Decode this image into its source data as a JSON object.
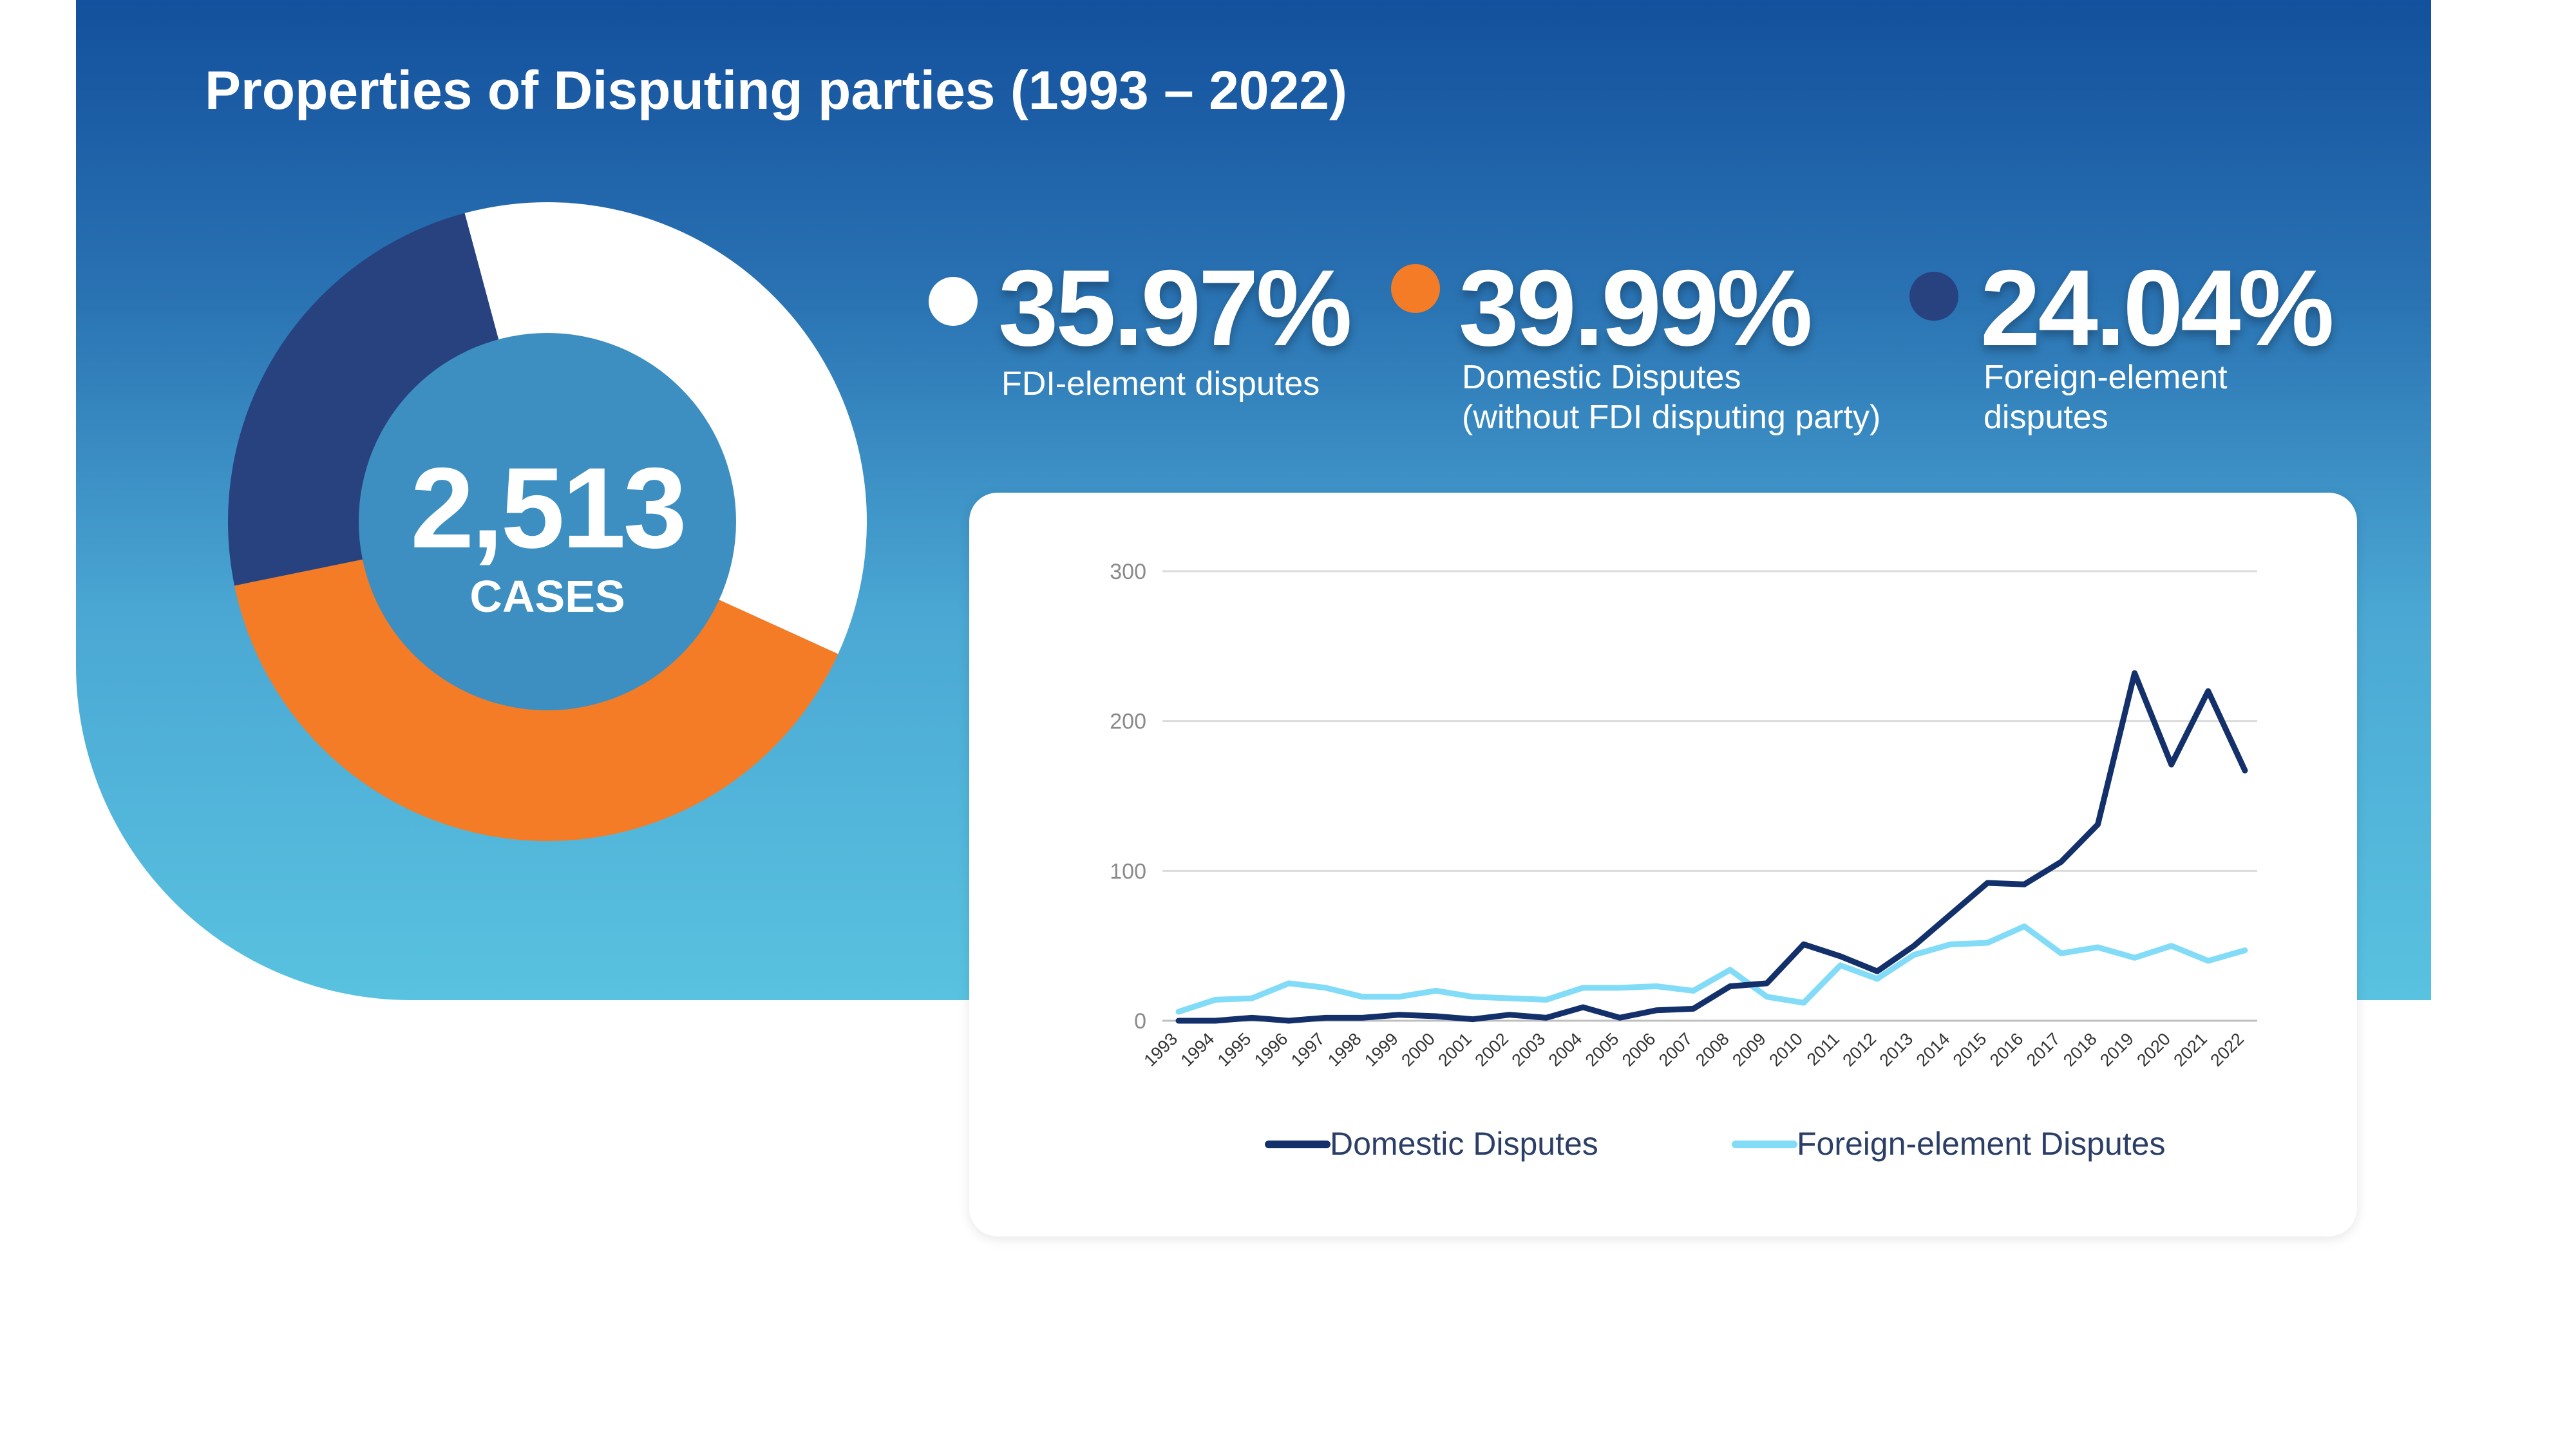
{
  "title": "Properties of Disputing parties (1993 – 2022)",
  "colors": {
    "fdi": "#ffffff",
    "domestic": "#f47c26",
    "foreign": "#27427f",
    "domestic_line": "#13306b",
    "foreign_line": "#82dcf7",
    "donut_center": "#3c8fc0"
  },
  "total": {
    "value": "2,513",
    "label": "CASES"
  },
  "stats": [
    {
      "value": "35.97%",
      "label_lines": [
        "FDI-element disputes"
      ]
    },
    {
      "value": "39.99%",
      "label_lines": [
        "Domestic Disputes",
        "(without FDI disputing party)"
      ]
    },
    {
      "value": "24.04%",
      "label_lines": [
        "Foreign-element",
        "disputes"
      ]
    }
  ],
  "chart_data": [
    {
      "type": "pie",
      "variant": "donut",
      "labels": [
        "FDI-element disputes",
        "Domestic Disputes (without FDI disputing party)",
        "Foreign-element disputes"
      ],
      "values": [
        35.97,
        39.99,
        24.04
      ],
      "unit": "%",
      "total_cases": 2513
    },
    {
      "type": "line",
      "x": [
        "1993",
        "1994",
        "1995",
        "1996",
        "1997",
        "1998",
        "1999",
        "2000",
        "2001",
        "2002",
        "2003",
        "2004",
        "2005",
        "2006",
        "2007",
        "2008",
        "2009",
        "2010",
        "2011",
        "2012",
        "2013",
        "2014",
        "2015",
        "2016",
        "2017",
        "2018",
        "2019",
        "2020",
        "2021",
        "2022"
      ],
      "series": [
        {
          "name": "Domestic Disputes",
          "values": [
            0,
            0,
            2,
            0,
            2,
            2,
            4,
            3,
            1,
            4,
            2,
            9,
            2,
            7,
            8,
            23,
            25,
            51,
            43,
            33,
            50,
            71,
            92,
            91,
            106,
            131,
            232,
            171,
            220,
            167
          ]
        },
        {
          "name": "Foreign-element Disputes",
          "values": [
            6,
            14,
            15,
            25,
            22,
            16,
            16,
            20,
            16,
            15,
            14,
            22,
            22,
            23,
            20,
            34,
            16,
            12,
            37,
            28,
            44,
            51,
            52,
            63,
            45,
            49,
            42,
            50,
            40,
            47
          ]
        }
      ],
      "yticks": [
        0,
        100,
        200,
        300
      ],
      "ylim": [
        0,
        300
      ],
      "grid": true,
      "legend": "bottom"
    }
  ]
}
